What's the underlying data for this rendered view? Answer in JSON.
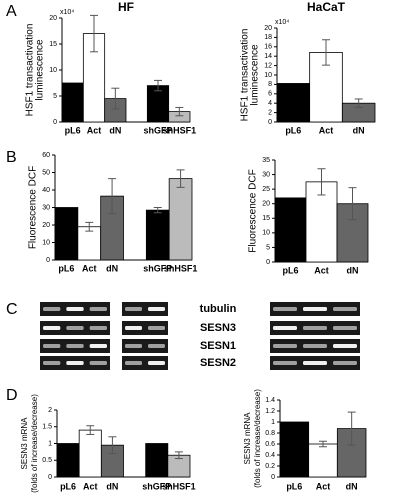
{
  "chart_data": [
    {
      "type": "bar",
      "panel": "A",
      "title": "HF",
      "multiplier": "x10⁴",
      "ylabel": [
        "HSF1 transactivation",
        "luminescence"
      ],
      "categories": [
        "pL6",
        "Act",
        "dN",
        null,
        "shGFP",
        "shHSF1"
      ],
      "values": [
        7.5,
        17,
        4.5,
        null,
        7,
        2
      ],
      "errors": [
        null,
        3.5,
        2,
        null,
        1,
        0.8
      ],
      "colors": [
        "#000000",
        "#ffffff",
        "#666666",
        null,
        "#000000",
        "#bbbbbb"
      ],
      "ylim": [
        0,
        20
      ],
      "yticks": [
        0,
        5,
        10,
        15,
        20
      ]
    },
    {
      "type": "bar",
      "title": "HaCaT",
      "multiplier": "x10⁴",
      "ylabel": [
        "HSF1 transactivation",
        "luminescence"
      ],
      "categories": [
        "pL6",
        "Act",
        "dN"
      ],
      "values": [
        8.2,
        14.8,
        4
      ],
      "errors": [
        null,
        2.7,
        0.9
      ],
      "colors": [
        "#000000",
        "#ffffff",
        "#666666"
      ],
      "ylim": [
        0,
        20
      ],
      "yticks": [
        0,
        2,
        4,
        6,
        8,
        10,
        12,
        14,
        16,
        18,
        20
      ]
    },
    {
      "type": "bar",
      "panel": "B",
      "ylabel": [
        "Fluorescence DCF"
      ],
      "categories": [
        "pL6",
        "Act",
        "dN",
        null,
        "shGFP",
        "shHSF1"
      ],
      "values": [
        30,
        19,
        36.5,
        null,
        28.5,
        46.5
      ],
      "errors": [
        null,
        2.5,
        10,
        null,
        1.5,
        5
      ],
      "colors": [
        "#000000",
        "#ffffff",
        "#666666",
        null,
        "#000000",
        "#bbbbbb"
      ],
      "ylim": [
        0,
        60
      ],
      "yticks": [
        0,
        10,
        20,
        30,
        40,
        50,
        60
      ]
    },
    {
      "type": "bar",
      "ylabel": [
        "Fluorescence DCF"
      ],
      "categories": [
        "pL6",
        "Act",
        "dN"
      ],
      "values": [
        22,
        27.5,
        20
      ],
      "errors": [
        null,
        4.5,
        5.5
      ],
      "colors": [
        "#000000",
        "#ffffff",
        "#666666"
      ],
      "ylim": [
        0,
        35
      ],
      "yticks": [
        0,
        5,
        10,
        15,
        20,
        25,
        30,
        35
      ]
    },
    {
      "type": "bar",
      "panel": "D",
      "ylabel": [
        "SESN3 mRNA",
        "(folds of increase/decrease)"
      ],
      "categories": [
        "pL6",
        "Act",
        "dN",
        null,
        "shGFP",
        "shHSF1"
      ],
      "values": [
        1,
        1.4,
        0.95,
        null,
        1,
        0.65
      ],
      "errors": [
        null,
        0.13,
        0.25,
        null,
        null,
        0.1
      ],
      "colors": [
        "#000000",
        "#ffffff",
        "#666666",
        null,
        "#000000",
        "#bbbbbb"
      ],
      "ylim": [
        0,
        2
      ],
      "yticks": [
        0,
        0.5,
        1,
        1.5,
        2
      ]
    },
    {
      "type": "bar",
      "ylabel": [
        "SESN3 mRNA",
        "(folds of increase/decrease)"
      ],
      "categories": [
        "pL6",
        "Act",
        "dN"
      ],
      "values": [
        1,
        0.6,
        0.88
      ],
      "errors": [
        null,
        0.05,
        0.3
      ],
      "colors": [
        "#000000",
        "#ffffff",
        "#666666"
      ],
      "ylim": [
        0,
        1.4
      ],
      "yticks": [
        0,
        0.2,
        0.4,
        0.6,
        0.8,
        1,
        1.2,
        1.4
      ]
    }
  ],
  "gel": {
    "panel": "C",
    "labels": [
      "tubulin",
      "SESN3",
      "SESN1",
      "SESN2"
    ]
  }
}
